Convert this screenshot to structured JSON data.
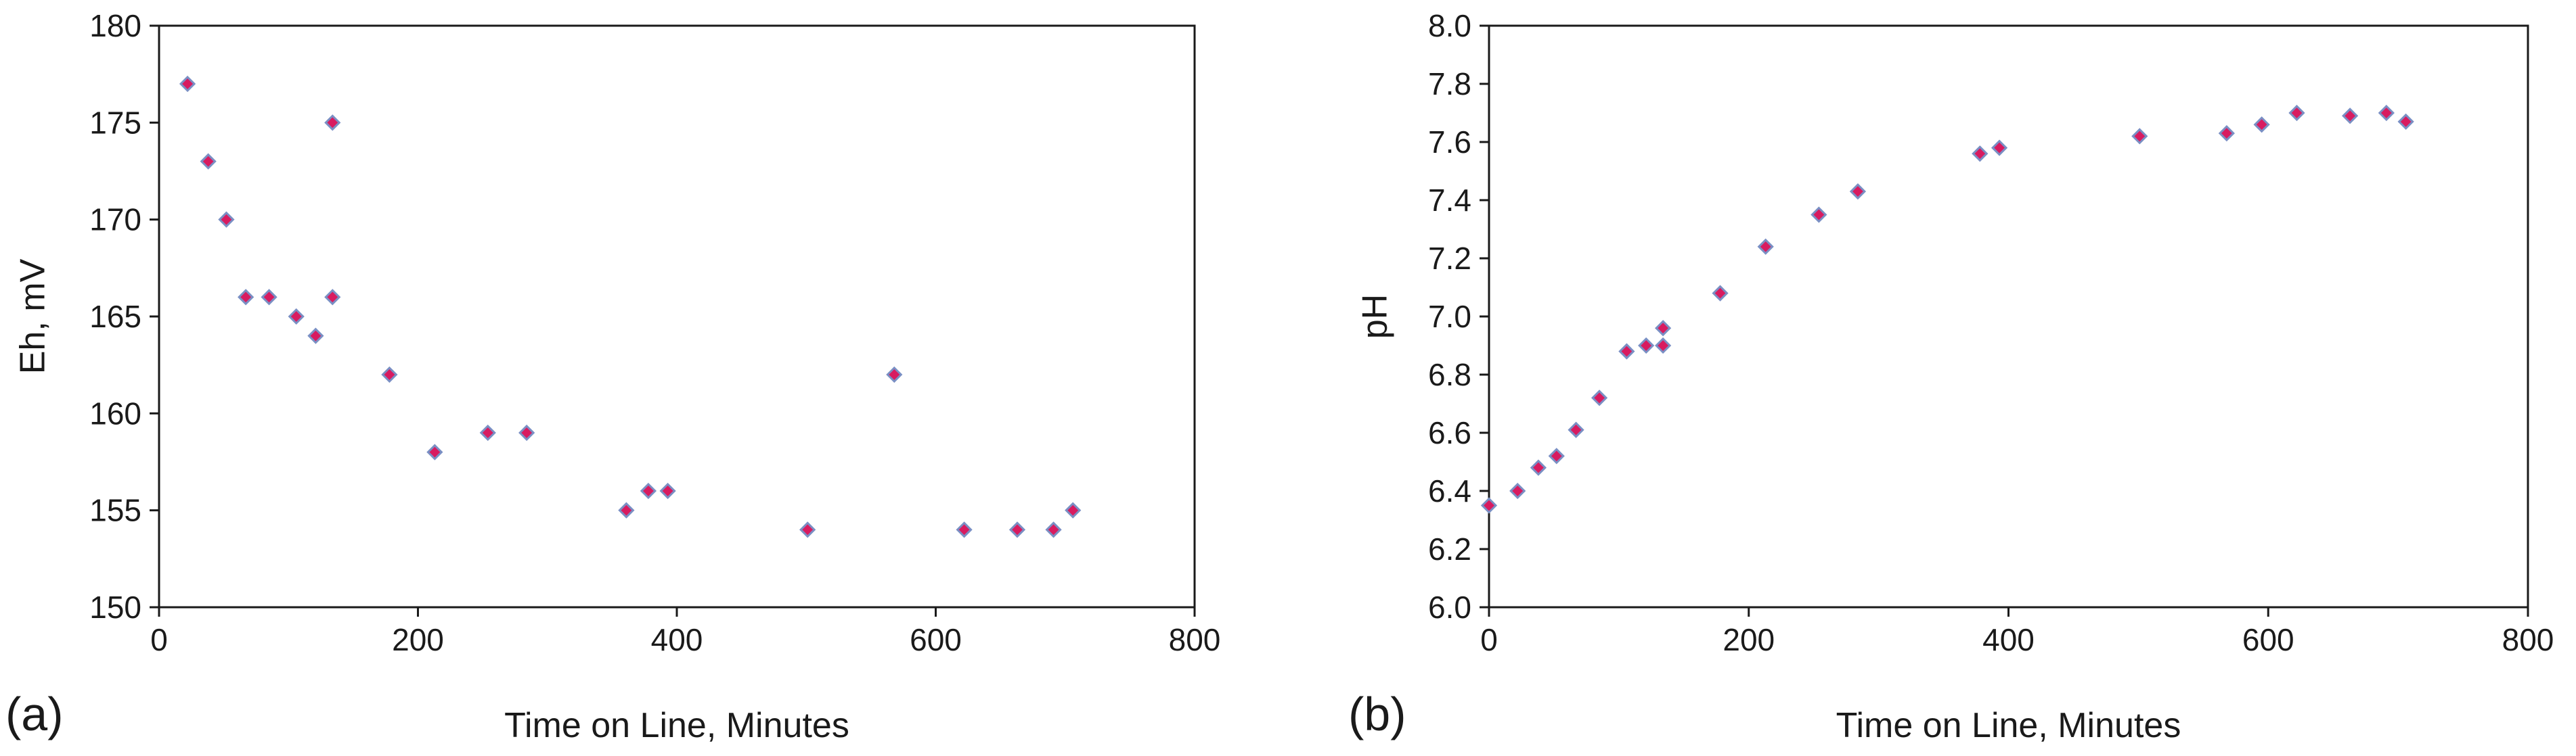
{
  "chart_data": [
    {
      "type": "scatter",
      "panel_label": "(a)",
      "xlabel": "Time on Line, Minutes",
      "ylabel": "Eh, mV",
      "xlim": [
        0,
        800
      ],
      "ylim": [
        150,
        180
      ],
      "xticks": [
        0,
        200,
        400,
        600,
        800
      ],
      "yticks": [
        150,
        155,
        160,
        165,
        170,
        175,
        180
      ],
      "grid": false,
      "marker_fill": "#d81b60",
      "marker_edge": "#7a8fc4",
      "series": [
        {
          "x": [
            22,
            38,
            52,
            67,
            85,
            106,
            121,
            134,
            134,
            178,
            213,
            254,
            284,
            361,
            378,
            393,
            501,
            568,
            622,
            663,
            691,
            706
          ],
          "y": [
            177,
            173,
            170,
            166,
            166,
            165,
            164,
            175,
            166,
            162,
            158,
            159,
            159,
            155,
            156,
            156,
            154,
            162,
            154,
            154,
            154,
            155
          ]
        }
      ]
    },
    {
      "type": "scatter",
      "panel_label": "(b)",
      "xlabel": "Time on Line, Minutes",
      "ylabel": "pH",
      "xlim": [
        0,
        800
      ],
      "ylim": [
        6.0,
        8.0
      ],
      "xticks": [
        0,
        200,
        400,
        600,
        800
      ],
      "yticks": [
        "6.0",
        "6.2",
        "6.4",
        "6.6",
        "6.8",
        "7.0",
        "7.2",
        "7.4",
        "7.6",
        "7.8",
        "8.0"
      ],
      "grid": false,
      "marker_fill": "#d81b60",
      "marker_edge": "#7a8fc4",
      "series": [
        {
          "x": [
            0,
            22,
            38,
            52,
            67,
            85,
            106,
            121,
            134,
            134,
            178,
            213,
            254,
            284,
            378,
            393,
            501,
            568,
            595,
            622,
            663,
            691,
            706
          ],
          "y": [
            6.35,
            6.4,
            6.48,
            6.52,
            6.61,
            6.72,
            6.88,
            6.9,
            6.9,
            6.96,
            7.08,
            7.24,
            7.35,
            7.43,
            7.56,
            7.58,
            7.62,
            7.63,
            7.66,
            7.7,
            7.69,
            7.7,
            7.67
          ]
        }
      ]
    }
  ]
}
